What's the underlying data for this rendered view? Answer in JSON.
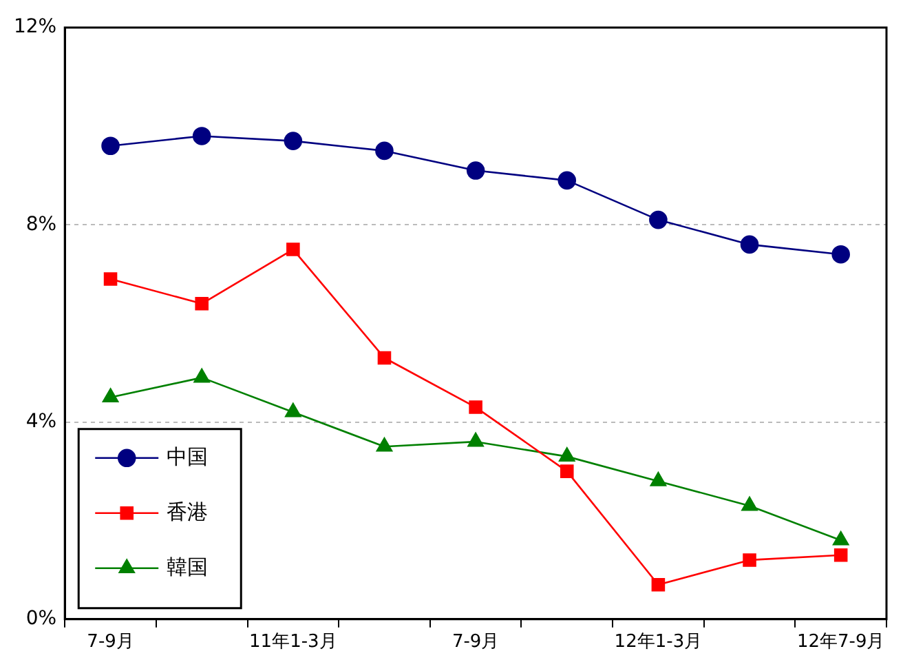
{
  "chart_data": {
    "type": "line",
    "categories": [
      "7-9月",
      null,
      "11年1-3月",
      null,
      "7-9月",
      null,
      "12年1-3月",
      null,
      "12年7-9月"
    ],
    "series": [
      {
        "name": "中国",
        "color": "#000080",
        "marker": "circle",
        "values": [
          9.6,
          9.8,
          9.7,
          9.5,
          9.1,
          8.9,
          8.1,
          7.6,
          7.4
        ]
      },
      {
        "name": "香港",
        "color": "#ff0000",
        "marker": "square",
        "values": [
          6.9,
          6.4,
          7.5,
          5.3,
          4.3,
          3.0,
          0.7,
          1.2,
          1.3
        ]
      },
      {
        "name": "韓国",
        "color": "#008000",
        "marker": "triangle",
        "values": [
          4.5,
          4.9,
          4.2,
          3.5,
          3.6,
          3.3,
          2.8,
          2.3,
          1.6
        ]
      }
    ],
    "ylim": [
      0,
      12
    ],
    "yticks": [
      {
        "value": 0,
        "label": "0%"
      },
      {
        "value": 4,
        "label": "4%"
      },
      {
        "value": 8,
        "label": "8%"
      },
      {
        "value": 12,
        "label": "12%"
      }
    ],
    "grid": "y",
    "legend": "bottom left",
    "line_style": "solid"
  }
}
